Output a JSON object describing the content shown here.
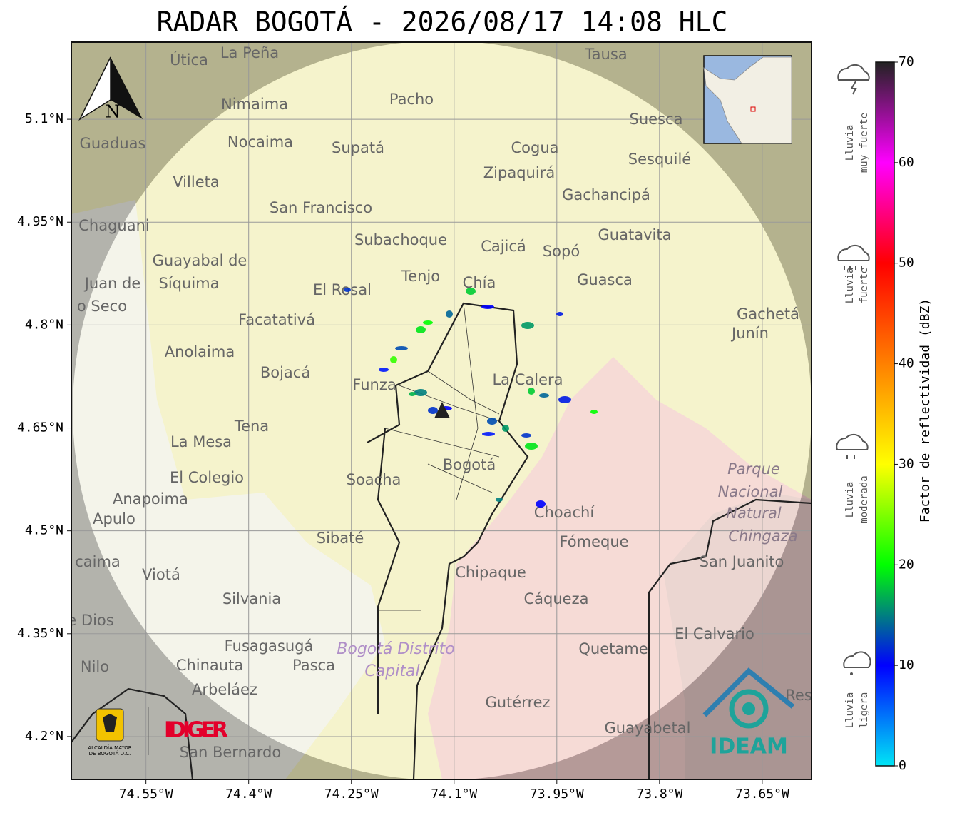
{
  "title": "RADAR BOGOTÁ - 2026/08/17 14:08 HLC",
  "compass_label": "N",
  "xlim": [
    -74.659,
    -73.578
  ],
  "ylim": [
    4.1375,
    5.2125
  ],
  "xticks": [
    {
      "value": -74.55,
      "label": "74.55°W"
    },
    {
      "value": -74.4,
      "label": "74.4°W"
    },
    {
      "value": -74.25,
      "label": "74.25°W"
    },
    {
      "value": -74.1,
      "label": "74.1°W"
    },
    {
      "value": -73.95,
      "label": "73.95°W"
    },
    {
      "value": -73.8,
      "label": "73.8°W"
    },
    {
      "value": -73.65,
      "label": "73.65°W"
    }
  ],
  "yticks": [
    {
      "value": 5.1,
      "label": "5.1°N"
    },
    {
      "value": 4.95,
      "label": "4.95°N"
    },
    {
      "value": 4.8,
      "label": "4.8°N"
    },
    {
      "value": 4.65,
      "label": "4.65°N"
    },
    {
      "value": 4.5,
      "label": "4.5°N"
    },
    {
      "value": 4.35,
      "label": "4.35°N"
    },
    {
      "value": 4.2,
      "label": "4.2°N"
    }
  ],
  "grid": true,
  "colorbar": {
    "label": "Factor de reflectividad (dBZ)",
    "lim": [
      0,
      70
    ],
    "ticks": [
      0,
      10,
      20,
      30,
      40,
      50,
      60,
      70
    ],
    "colors": [
      "#00e5f5",
      "#0000ff",
      "#00ff00",
      "#ffff00",
      "#ff8000",
      "#ff0000",
      "#ff00ff",
      "#222222"
    ]
  },
  "rain_legend": [
    {
      "lines": [
        "Lluvia",
        "muy fuerte"
      ]
    },
    {
      "lines": [
        "Lluvia",
        "fuerte"
      ]
    },
    {
      "lines": [
        "Lluvia",
        "moderada"
      ]
    },
    {
      "lines": [
        "Lluvia",
        "ligera"
      ]
    }
  ],
  "echoes": {
    "values": [
      12,
      18,
      10,
      14,
      20,
      16,
      11,
      19,
      13,
      22,
      9,
      15,
      17,
      12,
      10,
      18,
      14,
      11,
      20,
      13,
      9,
      16,
      12,
      19,
      15,
      10
    ]
  },
  "places": [
    "La Peña",
    "Útica",
    "Tausa",
    "Pacho",
    "Nimaima",
    "Guaduas",
    "Nocaima",
    "Supatá",
    "Cogua",
    "Suesca",
    "Zipaquirá",
    "Sesquilé",
    "Villeta",
    "Gachancipá",
    "San Francisco",
    "Chaguani",
    "Subachoque",
    "Guatavita",
    "Cajicá",
    "Sopó",
    "Guayabal de",
    "Síquima",
    "Tenjo",
    "Chía",
    "Guasca",
    "Juan de",
    "o Seco",
    "El Rosal",
    "Facatativá",
    "Gachetá",
    "Junín",
    "Anolaima",
    "Bojacá",
    "Funza",
    "La Calera",
    "Tena",
    "La Mesa",
    "Bogotá",
    "Soacha",
    "El Colegio",
    "Anapoima",
    "Choachí",
    "Apulo",
    "Sibaté",
    "Fómeque",
    "San Juanito",
    "caima",
    "Viotá",
    "Chipaque",
    "Silvania",
    "Cáqueza",
    "e Dios",
    "El Calvario",
    "Fusagasugá",
    "Quetame",
    "Nilo",
    "Chinauta",
    "Pasca",
    "Arbeláez",
    "Gutérrez",
    "Res",
    "Guayabetal",
    "San Bernardo"
  ],
  "park_labels": [
    "Parque",
    "Nacional",
    "Natural",
    "Chingaza"
  ],
  "district_labels": [
    "Bogotá Distrito",
    "Capital"
  ],
  "logos": {
    "alcaldia": [
      "ALCALDÍA MAYOR",
      "DE BOGOTÁ D.C."
    ],
    "idiger": "IDIGER",
    "ideam": "IDEAM"
  }
}
